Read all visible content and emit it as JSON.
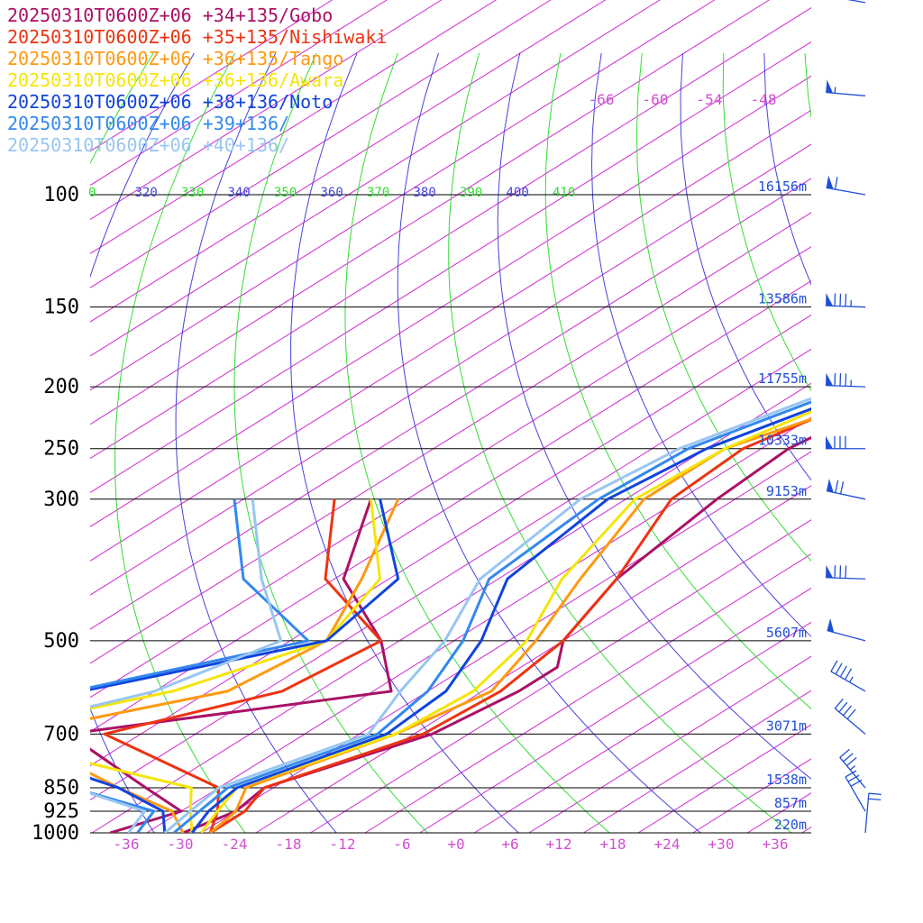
{
  "chart_data": {
    "type": "line",
    "title": "",
    "xlabel": "",
    "ylabel": "",
    "y_axis": "pressure (hPa, log)",
    "pressure_levels": [
      100,
      150,
      200,
      250,
      300,
      500,
      700,
      850,
      925,
      1000
    ],
    "heights": [
      {
        "p": 100,
        "label": "16156m"
      },
      {
        "p": 150,
        "label": "13586m"
      },
      {
        "p": 200,
        "label": "11755m"
      },
      {
        "p": 250,
        "label": "10333m"
      },
      {
        "p": 300,
        "label": "9153m"
      },
      {
        "p": 500,
        "label": "5607m"
      },
      {
        "p": 700,
        "label": "3071m"
      },
      {
        "p": 850,
        "label": "1538m"
      },
      {
        "p": 925,
        "label": "857m"
      },
      {
        "p": 1000,
        "label": "220m"
      }
    ],
    "x_ticks": [
      "-36",
      "-30",
      "-24",
      "-18",
      "-12",
      "-6",
      "+0",
      "+6",
      "+12",
      "+18",
      "+24",
      "+30",
      "+36"
    ],
    "upper_ticks": [
      "-66",
      "-60",
      "-54",
      "-48"
    ],
    "theta_labels": [
      {
        "t": "0",
        "color": "#33dd33"
      },
      {
        "t": "320",
        "color": "#4444dd"
      },
      {
        "t": "330",
        "color": "#33dd33"
      },
      {
        "t": "340",
        "color": "#4444dd"
      },
      {
        "t": "350",
        "color": "#33dd33"
      },
      {
        "t": "360",
        "color": "#4444dd"
      },
      {
        "t": "370",
        "color": "#33dd33"
      },
      {
        "t": "380",
        "color": "#4444dd"
      },
      {
        "t": "390",
        "color": "#33dd33"
      },
      {
        "t": "400",
        "color": "#4444dd"
      },
      {
        "t": "410",
        "color": "#33dd33"
      }
    ],
    "series": [
      {
        "name": "20250310T0600Z+06 +34+135/Gobo",
        "color": "#aa1166",
        "temp": [
          [
            1000,
            -30
          ],
          [
            925,
            -28
          ],
          [
            850,
            -29
          ],
          [
            700,
            -20
          ],
          [
            600,
            -18
          ],
          [
            550,
            -18
          ],
          [
            500,
            -22
          ],
          [
            400,
            -27
          ],
          [
            300,
            -30
          ],
          [
            250,
            -31
          ],
          [
            200,
            -28
          ],
          [
            150,
            -37
          ],
          [
            100,
            -53
          ],
          [
            70,
            -56
          ],
          [
            50,
            -59
          ]
        ],
        "dewp": [
          [
            1000,
            -38
          ],
          [
            925,
            -34
          ],
          [
            850,
            -42
          ],
          [
            700,
            -60
          ],
          [
            600,
            -32
          ],
          [
            500,
            -42
          ],
          [
            400,
            -57
          ],
          [
            300,
            -68
          ]
        ]
      },
      {
        "name": "20250310T0600Z+06 +35+135/Nishiwaki",
        "color": "#ee3311",
        "temp": [
          [
            1000,
            -27
          ],
          [
            925,
            -27
          ],
          [
            850,
            -29
          ],
          [
            700,
            -21
          ],
          [
            600,
            -20
          ],
          [
            500,
            -22
          ],
          [
            400,
            -27
          ],
          [
            300,
            -35
          ],
          [
            250,
            -36
          ],
          [
            200,
            -31
          ],
          [
            150,
            -32
          ],
          [
            100,
            -40
          ],
          [
            70,
            -48
          ],
          [
            50,
            -57
          ]
        ],
        "dewp": [
          [
            1000,
            -27
          ],
          [
            925,
            -30
          ],
          [
            850,
            -34
          ],
          [
            700,
            -56
          ],
          [
            600,
            -44
          ],
          [
            500,
            -42
          ],
          [
            400,
            -59
          ],
          [
            300,
            -72
          ]
        ]
      },
      {
        "name": "20250310T0600Z+06 +36+135/Tango",
        "color": "#ff9911",
        "temp": [
          [
            1000,
            -27
          ],
          [
            925,
            -28
          ],
          [
            850,
            -31
          ],
          [
            700,
            -24
          ],
          [
            600,
            -21
          ],
          [
            500,
            -25
          ],
          [
            400,
            -31
          ],
          [
            300,
            -38
          ],
          [
            250,
            -38
          ],
          [
            200,
            -29
          ],
          [
            150,
            -33
          ],
          [
            100,
            -42
          ],
          [
            70,
            -55
          ],
          [
            50,
            -60
          ]
        ],
        "dewp": [
          [
            1000,
            -30
          ],
          [
            925,
            -35
          ],
          [
            850,
            -45
          ],
          [
            700,
            -66
          ],
          [
            600,
            -50
          ],
          [
            500,
            -48
          ],
          [
            400,
            -55
          ],
          [
            300,
            -65
          ]
        ]
      },
      {
        "name": "20250310T0600Z+06 +36+136/Awara",
        "color": "#f5e50a",
        "temp": [
          [
            1000,
            -28
          ],
          [
            925,
            -30
          ],
          [
            850,
            -32
          ],
          [
            700,
            -24
          ],
          [
            600,
            -23
          ],
          [
            500,
            -26
          ],
          [
            400,
            -33
          ],
          [
            300,
            -39
          ],
          [
            250,
            -38
          ],
          [
            200,
            -33
          ],
          [
            150,
            -33
          ],
          [
            100,
            -42
          ],
          [
            70,
            -58
          ],
          [
            50,
            -62
          ]
        ],
        "dewp": [
          [
            1000,
            -29
          ],
          [
            925,
            -33
          ],
          [
            850,
            -37
          ],
          [
            700,
            -71
          ],
          [
            600,
            -56
          ],
          [
            500,
            -48
          ],
          [
            400,
            -53
          ],
          [
            300,
            -68
          ]
        ]
      },
      {
        "name": "20250310T0600Z+06 +38+136/Noto",
        "color": "#1144dd",
        "temp": [
          [
            1000,
            -29
          ],
          [
            925,
            -31
          ],
          [
            850,
            -32
          ],
          [
            700,
            -25
          ],
          [
            600,
            -26
          ],
          [
            500,
            -31
          ],
          [
            400,
            -39
          ],
          [
            300,
            -42
          ],
          [
            250,
            -40
          ],
          [
            200,
            -33
          ],
          [
            150,
            -38
          ],
          [
            100,
            -44
          ],
          [
            70,
            -56
          ],
          [
            50,
            -62
          ]
        ],
        "dewp": [
          [
            1000,
            -32
          ],
          [
            925,
            -36
          ],
          [
            850,
            -45
          ],
          [
            700,
            -72
          ],
          [
            600,
            -66
          ],
          [
            500,
            -48
          ],
          [
            400,
            -51
          ],
          [
            300,
            -67
          ]
        ]
      },
      {
        "name": "20250310T0600Z+06 +39+136/",
        "color": "#3388ee",
        "temp": [
          [
            1000,
            -31
          ],
          [
            925,
            -32
          ],
          [
            850,
            -33
          ],
          [
            700,
            -26
          ],
          [
            600,
            -28
          ],
          [
            500,
            -33
          ],
          [
            400,
            -41
          ],
          [
            300,
            -43
          ],
          [
            250,
            -42
          ],
          [
            200,
            -35
          ],
          [
            150,
            -38
          ],
          [
            100,
            -45
          ],
          [
            70,
            -58
          ],
          [
            50,
            -64
          ]
        ],
        "dewp": [
          [
            1000,
            -35
          ],
          [
            925,
            -37
          ],
          [
            850,
            -50
          ],
          [
            700,
            -73
          ],
          [
            600,
            -67
          ],
          [
            500,
            -50
          ],
          [
            400,
            -68
          ],
          [
            300,
            -83
          ]
        ]
      },
      {
        "name": "20250310T0600Z+06 +40+136/",
        "color": "#99c6f2",
        "temp": [
          [
            1000,
            -32
          ],
          [
            925,
            -33
          ],
          [
            850,
            -34
          ],
          [
            700,
            -27
          ],
          [
            600,
            -31
          ],
          [
            500,
            -35
          ],
          [
            400,
            -42
          ],
          [
            300,
            -45
          ],
          [
            250,
            -43
          ],
          [
            200,
            -36
          ],
          [
            150,
            -38
          ],
          [
            100,
            -44
          ],
          [
            70,
            -59
          ],
          [
            50,
            -66
          ]
        ],
        "dewp": [
          [
            1000,
            -36
          ],
          [
            925,
            -38
          ],
          [
            850,
            -50
          ],
          [
            700,
            -70
          ],
          [
            600,
            -58
          ],
          [
            500,
            -53
          ],
          [
            400,
            -66
          ],
          [
            300,
            -81
          ]
        ]
      }
    ],
    "wind_barbs": [
      {
        "p": 50,
        "dir": 280,
        "kt": 60
      },
      {
        "p": 70,
        "dir": 275,
        "kt": 55
      },
      {
        "p": 100,
        "dir": 280,
        "kt": 60
      },
      {
        "p": 150,
        "dir": 272,
        "kt": 85
      },
      {
        "p": 200,
        "dir": 272,
        "kt": 85
      },
      {
        "p": 250,
        "dir": 270,
        "kt": 80
      },
      {
        "p": 300,
        "dir": 282,
        "kt": 70
      },
      {
        "p": 400,
        "dir": 272,
        "kt": 80
      },
      {
        "p": 500,
        "dir": 285,
        "kt": 50
      },
      {
        "p": 600,
        "dir": 300,
        "kt": 45
      },
      {
        "p": 700,
        "dir": 310,
        "kt": 40
      },
      {
        "p": 850,
        "dir": 320,
        "kt": 35
      },
      {
        "p": 925,
        "dir": 330,
        "kt": 30
      },
      {
        "p": 1000,
        "dir": 5,
        "kt": 20
      }
    ]
  }
}
